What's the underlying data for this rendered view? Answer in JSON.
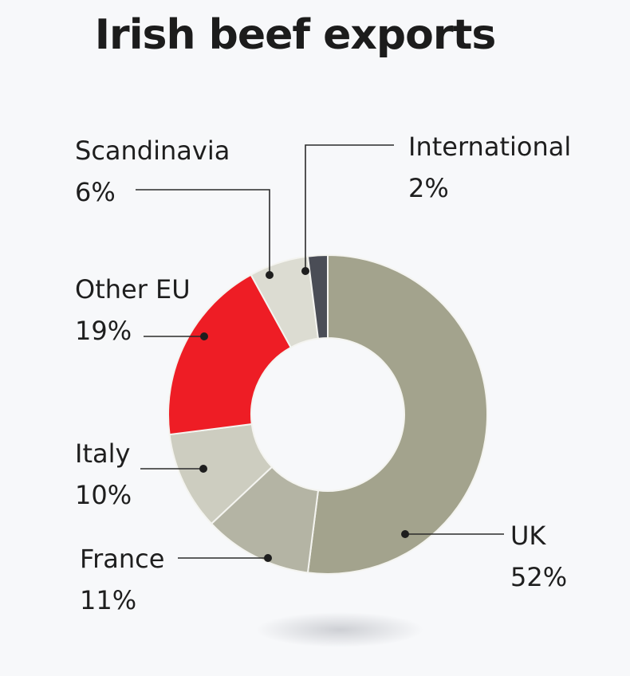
{
  "chart_data": {
    "type": "pie",
    "title": "Irish beef exports",
    "slices": [
      {
        "label": "UK",
        "pct_label": "52%",
        "value": 52,
        "color": "#a3a38d"
      },
      {
        "label": "France",
        "pct_label": "11%",
        "value": 11,
        "color": "#b4b4a4"
      },
      {
        "label": "Italy",
        "pct_label": "10%",
        "value": 10,
        "color": "#cdcdc0"
      },
      {
        "label": "Other EU",
        "pct_label": "19%",
        "value": 19,
        "color": "#ee1d25"
      },
      {
        "label": "Scandinavia",
        "pct_label": "6%",
        "value": 6,
        "color": "#dcdcd2"
      },
      {
        "label": "International",
        "pct_label": "2%",
        "value": 2,
        "color": "#4a4d56"
      }
    ],
    "donut": true
  }
}
